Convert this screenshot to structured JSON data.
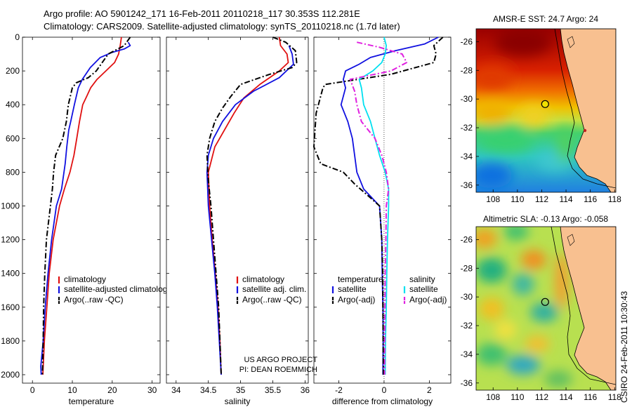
{
  "header": {
    "line1": "Argo profile: AO 5901242_171 16-Feb-2011 20110218_117 30.353S 112.281E",
    "line2": "Climatology: CARS2009. Satellite-adjusted climatology: synTS_20110218.nc (1.7d later)"
  },
  "footer": {
    "project1": "US ARGO PROJECT",
    "project2": "PI: DEAN ROEMMICH",
    "stamp": "CSIRO 24-Feb-2011 10:30:43"
  },
  "colors": {
    "climatology": "#e01010",
    "satellite": "#1010e0",
    "argo": "#000000",
    "sal_satellite": "#00e0f0",
    "sal_argo": "#e020e0",
    "land": "#f8c090"
  },
  "chart_data": [
    {
      "type": "line",
      "xlabel": "temperature",
      "ylabel": "",
      "xlim": [
        -2.5,
        32
      ],
      "ylim": [
        0,
        2050
      ],
      "y_reversed": true,
      "xticks": [
        0,
        10,
        20,
        30
      ],
      "yticks": [
        0,
        200,
        400,
        600,
        800,
        1000,
        1200,
        1400,
        1600,
        1800,
        2000
      ],
      "legend": [
        "climatology",
        "satellite-adjusted climatolog",
        "Argo(..raw -QC)"
      ],
      "series": [
        {
          "name": "climatology",
          "color": "#e01010",
          "points": [
            [
              22.3,
              0
            ],
            [
              22,
              50
            ],
            [
              21.6,
              100
            ],
            [
              20.6,
              150
            ],
            [
              18.4,
              200
            ],
            [
              16.2,
              250
            ],
            [
              14.6,
              300
            ],
            [
              13.6,
              350
            ],
            [
              12.6,
              400
            ],
            [
              11.8,
              500
            ],
            [
              11.1,
              600
            ],
            [
              10.4,
              700
            ],
            [
              9.4,
              800
            ],
            [
              8.0,
              900
            ],
            [
              6.8,
              1000
            ],
            [
              5.2,
              1200
            ],
            [
              4.2,
              1400
            ],
            [
              3.6,
              1600
            ],
            [
              3.0,
              1800
            ],
            [
              2.6,
              2000
            ]
          ]
        },
        {
          "name": "satellite-adjusted climatolog",
          "color": "#1010e0",
          "points": [
            [
              24,
              30
            ],
            [
              24.5,
              50
            ],
            [
              23,
              70
            ],
            [
              20,
              90
            ],
            [
              17,
              120
            ],
            [
              14.5,
              180
            ],
            [
              12.5,
              250
            ],
            [
              11.5,
              300
            ],
            [
              10.5,
              400
            ],
            [
              9.6,
              500
            ],
            [
              9.1,
              550
            ],
            [
              8.6,
              650
            ],
            [
              8.2,
              750
            ],
            [
              7.3,
              900
            ],
            [
              6.0,
              1000
            ],
            [
              4.8,
              1200
            ],
            [
              3.9,
              1400
            ],
            [
              3.2,
              1600
            ],
            [
              2.7,
              1800
            ],
            [
              2.1,
              1950
            ],
            [
              2.2,
              2000
            ]
          ]
        },
        {
          "name": "Argo(..raw -QC)",
          "color": "#000000",
          "dashed": true,
          "points": [
            [
              24.5,
              0
            ],
            [
              23,
              50
            ],
            [
              19,
              100
            ],
            [
              16,
              200
            ],
            [
              14,
              240
            ],
            [
              11,
              270
            ],
            [
              10,
              300
            ],
            [
              9,
              400
            ],
            [
              8.5,
              500
            ],
            [
              7.6,
              600
            ],
            [
              5.8,
              700
            ],
            [
              5.3,
              800
            ],
            [
              5.0,
              900
            ],
            [
              4.5,
              1000
            ],
            [
              3.5,
              1200
            ],
            [
              3.1,
              1400
            ],
            [
              2.8,
              1600
            ],
            [
              2.7,
              1800
            ],
            [
              2.5,
              2000
            ]
          ]
        }
      ]
    },
    {
      "type": "line",
      "xlabel": "salinity",
      "ylabel": "",
      "xlim": [
        33.85,
        36.05
      ],
      "ylim": [
        0,
        2050
      ],
      "y_reversed": true,
      "xticks": [
        34,
        34.5,
        35,
        35.5,
        36
      ],
      "legend": [
        "climatology",
        "satellite adj. clim.",
        "Argo(..raw -QC)"
      ],
      "series": [
        {
          "name": "climatology",
          "color": "#e01010",
          "points": [
            [
              35.6,
              0
            ],
            [
              35.62,
              50
            ],
            [
              35.72,
              100
            ],
            [
              35.74,
              150
            ],
            [
              35.6,
              200
            ],
            [
              35.3,
              280
            ],
            [
              35.05,
              360
            ],
            [
              34.9,
              450
            ],
            [
              34.75,
              550
            ],
            [
              34.6,
              650
            ],
            [
              34.5,
              800
            ],
            [
              34.52,
              1000
            ],
            [
              34.56,
              1200
            ],
            [
              34.61,
              1400
            ],
            [
              34.65,
              1600
            ],
            [
              34.68,
              1800
            ],
            [
              34.7,
              2000
            ]
          ]
        },
        {
          "name": "satellite adj. clim.",
          "color": "#1010e0",
          "points": [
            [
              35.75,
              50
            ],
            [
              35.8,
              100
            ],
            [
              35.82,
              160
            ],
            [
              35.6,
              240
            ],
            [
              35.2,
              320
            ],
            [
              34.92,
              400
            ],
            [
              34.72,
              500
            ],
            [
              34.58,
              600
            ],
            [
              34.5,
              700
            ],
            [
              34.48,
              800
            ],
            [
              34.5,
              1000
            ],
            [
              34.55,
              1200
            ],
            [
              34.6,
              1400
            ],
            [
              34.64,
              1600
            ],
            [
              34.67,
              1800
            ],
            [
              34.7,
              2000
            ]
          ]
        },
        {
          "name": "Argo(..raw -QC)",
          "color": "#000000",
          "dashed": true,
          "points": [
            [
              35.5,
              0
            ],
            [
              35.7,
              30
            ],
            [
              35.85,
              80
            ],
            [
              35.87,
              150
            ],
            [
              35.8,
              180
            ],
            [
              35.45,
              220
            ],
            [
              35.0,
              280
            ],
            [
              34.85,
              350
            ],
            [
              34.72,
              420
            ],
            [
              34.6,
              500
            ],
            [
              34.52,
              600
            ],
            [
              34.48,
              700
            ],
            [
              34.5,
              850
            ],
            [
              34.54,
              1000
            ],
            [
              34.58,
              1200
            ],
            [
              34.62,
              1400
            ],
            [
              34.66,
              1600
            ],
            [
              34.68,
              1800
            ],
            [
              34.7,
              2000
            ]
          ]
        }
      ]
    },
    {
      "type": "line",
      "xlabel": "difference from climatology",
      "ylabel": "",
      "xlim": [
        -3.1,
        2.95
      ],
      "ylim": [
        0,
        2050
      ],
      "y_reversed": true,
      "xticks": [
        -2,
        0,
        2
      ],
      "legend": [
        "temperature",
        "satellite",
        "Argo(-adj)",
        "salinity",
        "satellite",
        "Argo(-adj)"
      ],
      "series": [
        {
          "name": "satellite",
          "color": "#1010e0",
          "points": [
            [
              2.4,
              0
            ],
            [
              1.8,
              40
            ],
            [
              0.5,
              80
            ],
            [
              -0.6,
              120
            ],
            [
              -1.1,
              160
            ],
            [
              -1.7,
              200
            ],
            [
              -1.8,
              250
            ],
            [
              -1.7,
              300
            ],
            [
              -1.9,
              400
            ],
            [
              -1.6,
              500
            ],
            [
              -1.4,
              600
            ],
            [
              -1.3,
              700
            ],
            [
              -1.2,
              800
            ],
            [
              -0.9,
              900
            ],
            [
              -0.2,
              1000
            ],
            [
              -0.1,
              1200
            ],
            [
              -0.08,
              1400
            ],
            [
              -0.05,
              1600
            ],
            [
              -0.04,
              1800
            ],
            [
              -0.05,
              2000
            ]
          ]
        },
        {
          "name": "Argo(-adj)",
          "color": "#000000",
          "dashed": true,
          "points": [
            [
              2.6,
              0
            ],
            [
              2.2,
              50
            ],
            [
              2.3,
              100
            ],
            [
              2.2,
              150
            ],
            [
              0.3,
              220
            ],
            [
              -2.6,
              280
            ],
            [
              -2.7,
              300
            ],
            [
              -3.0,
              450
            ],
            [
              -3.1,
              650
            ],
            [
              -2.8,
              750
            ],
            [
              -1.8,
              800
            ],
            [
              -1.3,
              870
            ],
            [
              -0.7,
              940
            ],
            [
              -0.2,
              1000
            ],
            [
              -0.1,
              1200
            ],
            [
              -0.06,
              1400
            ],
            [
              -0.05,
              1600
            ],
            [
              -0.04,
              1800
            ],
            [
              -0.03,
              2000
            ]
          ]
        },
        {
          "name": "satellite",
          "color": "#00e0f0",
          "points": [
            [
              0,
              0
            ],
            [
              0.1,
              50
            ],
            [
              0.05,
              100
            ],
            [
              -0.1,
              150
            ],
            [
              -0.5,
              200
            ],
            [
              -1.1,
              250
            ],
            [
              -1.0,
              300
            ],
            [
              -0.9,
              400
            ],
            [
              -0.6,
              500
            ],
            [
              -0.4,
              600
            ],
            [
              -0.2,
              700
            ],
            [
              0.05,
              800
            ],
            [
              0.2,
              900
            ],
            [
              0.2,
              1000
            ],
            [
              0.15,
              1200
            ],
            [
              0.12,
              1400
            ],
            [
              0.1,
              1600
            ],
            [
              0.06,
              1800
            ],
            [
              0.05,
              2000
            ]
          ]
        },
        {
          "name": "Argo(-adj)",
          "color": "#e020e0",
          "dashed": true,
          "points": [
            [
              -1.2,
              30
            ],
            [
              -0.2,
              60
            ],
            [
              0.8,
              100
            ],
            [
              1.0,
              150
            ],
            [
              0.3,
              200
            ],
            [
              -1.5,
              250
            ],
            [
              -1.3,
              320
            ],
            [
              -1.2,
              400
            ],
            [
              -1.0,
              500
            ],
            [
              -0.4,
              600
            ],
            [
              -0.1,
              700
            ],
            [
              0.1,
              800
            ],
            [
              0.2,
              900
            ],
            [
              0.1,
              1000
            ],
            [
              0.08,
              1200
            ],
            [
              0.05,
              1400
            ],
            [
              0.04,
              1600
            ],
            [
              0.03,
              1800
            ],
            [
              0.02,
              2000
            ]
          ]
        }
      ]
    },
    {
      "type": "heatmap",
      "title": "AMSR-E SST: 24.7 Argo: 24",
      "xlim": [
        106.6,
        118.1
      ],
      "ylim": [
        -36.5,
        -25.1
      ],
      "xticks": [
        108,
        110,
        112,
        114,
        116,
        118
      ],
      "yticks": [
        -26,
        -28,
        -30,
        -32,
        -34,
        -36
      ],
      "profile_location": [
        112.28,
        -30.35
      ]
    },
    {
      "type": "heatmap",
      "title": "Altimetric SLA: -0.13 Argo: -0.058",
      "xlim": [
        106.6,
        118.1
      ],
      "ylim": [
        -36.5,
        -25.1
      ],
      "xticks": [
        108,
        110,
        112,
        114,
        116,
        118
      ],
      "yticks": [
        -26,
        -28,
        -30,
        -32,
        -34,
        -36
      ],
      "profile_location": [
        112.28,
        -30.35
      ]
    }
  ]
}
